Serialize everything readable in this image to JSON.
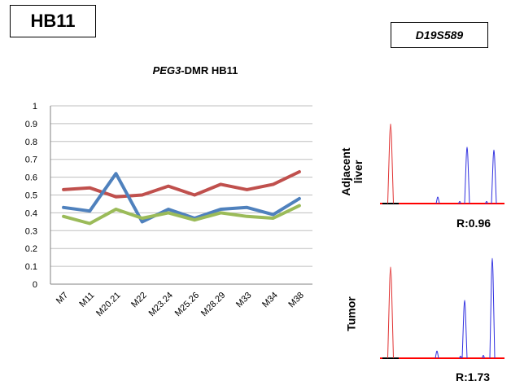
{
  "sample_label": "HB11",
  "marker_label": "D19S589",
  "chart_data": {
    "type": "line",
    "title_italic": "PEG3",
    "title_rest": "-DMR HB11",
    "categories": [
      "M7",
      "M11",
      "M20.21",
      "M22",
      "M23.24",
      "M25.26",
      "M28.29",
      "M33",
      "M34",
      "M38"
    ],
    "ylim": [
      0,
      1
    ],
    "yticks": [
      "0",
      "0.1",
      "0.2",
      "0.3",
      "0.4",
      "0.5",
      "0.6",
      "0.7",
      "0.8",
      "0.9",
      "1"
    ],
    "grid": true,
    "series": [
      {
        "color": "#c0504d",
        "values": [
          0.53,
          0.54,
          0.49,
          0.5,
          0.55,
          0.5,
          0.56,
          0.53,
          0.56,
          0.63
        ]
      },
      {
        "color": "#4f81bd",
        "values": [
          0.43,
          0.41,
          0.62,
          0.35,
          0.42,
          0.37,
          0.42,
          0.43,
          0.39,
          0.48
        ]
      },
      {
        "color": "#9bbb59",
        "values": [
          0.38,
          0.34,
          0.42,
          0.37,
          0.4,
          0.36,
          0.4,
          0.38,
          0.37,
          0.44
        ]
      }
    ]
  },
  "electropherograms": [
    {
      "label_line1": "Adjacent",
      "label_line2": "liver",
      "ratio": "R:0.96"
    },
    {
      "label_line1": "Tumor",
      "label_line2": "",
      "ratio": "R:1.73"
    }
  ],
  "colors": {
    "red_peak": "#e03030",
    "blue_peak": "#3030e0",
    "baseline": "#ff0000"
  }
}
